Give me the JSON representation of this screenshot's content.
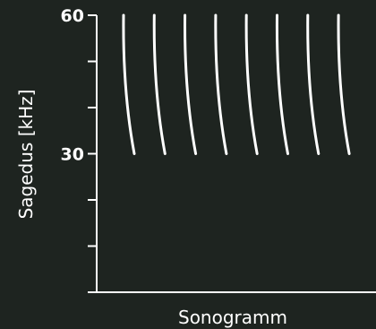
{
  "chart_data": {
    "type": "line",
    "title": "",
    "xlabel": "Sonogramm",
    "ylabel": "Sagedus [kHz]",
    "ylim": [
      0,
      60
    ],
    "y_tick_labels": [
      {
        "value": 60,
        "label": "60"
      },
      {
        "value": 30,
        "label": "30"
      }
    ],
    "y_minor_ticks": [
      0,
      10,
      20,
      30,
      40,
      50,
      60
    ],
    "grid": false,
    "legend": "none",
    "series": [
      {
        "points": [
          [
            1,
            60
          ],
          [
            1,
            30
          ]
        ]
      },
      {
        "points": [
          [
            2,
            60
          ],
          [
            2,
            30
          ]
        ]
      },
      {
        "points": [
          [
            3,
            60
          ],
          [
            3,
            30
          ]
        ]
      },
      {
        "points": [
          [
            4,
            60
          ],
          [
            4,
            30
          ]
        ]
      },
      {
        "points": [
          [
            5,
            60
          ],
          [
            5,
            30
          ]
        ]
      },
      {
        "points": [
          [
            6,
            60
          ],
          [
            6,
            30
          ]
        ]
      },
      {
        "points": [
          [
            7,
            60
          ],
          [
            7,
            30
          ]
        ]
      },
      {
        "points": [
          [
            8,
            60
          ],
          [
            8,
            30
          ]
        ]
      }
    ],
    "colors": {
      "background": "#1e2420",
      "foreground": "#ffffff"
    }
  }
}
